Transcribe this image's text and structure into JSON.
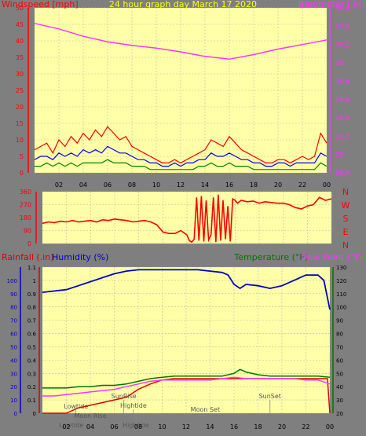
{
  "colors": {
    "background": "#7f7f7f",
    "plot_bg": "#ffffa8",
    "grid": "#b9b9b9",
    "wind_red": "#ff0000",
    "wind_blue": "#0000ff",
    "wind_green": "#008000",
    "barometer": "#ff33ff",
    "direction": "#ff0000",
    "humidity": "#0000cc",
    "rainfall": "#dd0000",
    "temperature": "#007700",
    "dewpoint": "#ff33ff",
    "yellow_text": "#ffff00"
  },
  "chart_data": [
    {
      "type": "line",
      "title": "24 hour graph day   March 17 2020",
      "series": [
        {
          "name": "Windspeed [mph]",
          "axis": "left",
          "x": [
            0,
            0.5,
            1,
            1.5,
            2,
            2.5,
            3,
            3.5,
            4,
            4.5,
            5,
            5.5,
            6,
            6.5,
            7,
            7.5,
            8,
            8.5,
            9,
            9.5,
            10,
            10.5,
            11,
            11.5,
            12,
            12.5,
            13,
            13.5,
            14,
            14.5,
            15,
            15.5,
            16,
            16.5,
            17,
            17.5,
            18,
            18.5,
            19,
            19.5,
            20,
            20.5,
            21,
            21.5,
            22,
            22.5,
            23,
            23.5,
            24
          ],
          "gust": [
            7,
            8,
            9,
            6,
            10,
            8,
            11,
            9,
            12,
            10,
            13,
            11,
            14,
            12,
            10,
            11,
            8,
            7,
            6,
            5,
            4,
            3,
            3,
            4,
            3,
            4,
            5,
            6,
            7,
            10,
            9,
            8,
            11,
            9,
            7,
            6,
            5,
            4,
            3,
            3,
            4,
            4,
            3,
            4,
            5,
            4,
            5,
            12,
            9
          ],
          "average": [
            4,
            5,
            5,
            4,
            6,
            5,
            6,
            5,
            7,
            6,
            7,
            6,
            8,
            7,
            6,
            6,
            5,
            4,
            4,
            3,
            3,
            2,
            2,
            3,
            2,
            3,
            3,
            4,
            4,
            6,
            5,
            5,
            6,
            5,
            4,
            4,
            3,
            3,
            2,
            2,
            3,
            3,
            2,
            3,
            3,
            3,
            3,
            6,
            5
          ],
          "lull": [
            2,
            2,
            3,
            2,
            3,
            2,
            3,
            2,
            3,
            3,
            3,
            3,
            4,
            3,
            3,
            3,
            2,
            2,
            2,
            1,
            1,
            1,
            1,
            1,
            1,
            1,
            1,
            2,
            2,
            3,
            2,
            2,
            3,
            2,
            2,
            2,
            1,
            1,
            1,
            1,
            1,
            1,
            1,
            1,
            1,
            1,
            1,
            3,
            2
          ]
        },
        {
          "name": "Barometer [.in]",
          "axis": "right",
          "x": [
            0,
            2,
            4,
            6,
            8,
            10,
            12,
            14,
            16,
            18,
            20,
            22,
            24
          ],
          "values": [
            30.43,
            30.37,
            30.29,
            30.23,
            30.19,
            30.16,
            30.12,
            30.07,
            30.04,
            30.09,
            30.15,
            30.2,
            30.25
          ]
        }
      ],
      "x_ticks": [
        "02",
        "04",
        "06",
        "08",
        "10",
        "12",
        "14",
        "16",
        "18",
        "20",
        "22",
        "00"
      ],
      "y_left": {
        "label": "Windspeed [mph]",
        "min": 0,
        "max": 50,
        "ticks": [
          0,
          5,
          10,
          15,
          20,
          25,
          30,
          35,
          40,
          45,
          50
        ]
      },
      "y_right": {
        "label": "Barometer [.in]",
        "min": 28.8,
        "max": 30.6,
        "ticks": [
          "28.8",
          "29",
          "29.2",
          "29.4",
          "29.6",
          "29.8",
          "30",
          "30.2",
          "30.4",
          "30.6"
        ]
      },
      "grid": true
    },
    {
      "type": "line",
      "series": [
        {
          "name": "Wind direction",
          "x": [
            0,
            0.5,
            1,
            1.5,
            2,
            2.5,
            3,
            3.5,
            4,
            4.5,
            5,
            5.5,
            6,
            6.5,
            7,
            7.5,
            8,
            8.5,
            9,
            9.5,
            10,
            10.5,
            11,
            11.5,
            12,
            12.2,
            12.4,
            12.6,
            12.8,
            13,
            13.2,
            13.4,
            13.6,
            13.8,
            14,
            14.2,
            14.4,
            14.6,
            14.8,
            15,
            15.2,
            15.4,
            15.6,
            15.8,
            16,
            16.2,
            16.5,
            17,
            17.5,
            18,
            18.5,
            19,
            19.5,
            20,
            20.5,
            21,
            21.5,
            22,
            22.5,
            23,
            23.5,
            24
          ],
          "values": [
            140,
            150,
            145,
            155,
            150,
            160,
            150,
            155,
            160,
            150,
            165,
            160,
            170,
            165,
            160,
            150,
            155,
            160,
            150,
            130,
            80,
            70,
            70,
            90,
            60,
            20,
            10,
            30,
            320,
            20,
            330,
            15,
            300,
            25,
            60,
            320,
            10,
            340,
            20,
            300,
            30,
            260,
            15,
            310,
            300,
            280,
            300,
            290,
            295,
            280,
            290,
            285,
            280,
            280,
            270,
            250,
            240,
            260,
            270,
            320,
            300,
            310
          ]
        }
      ],
      "y": {
        "min": 0,
        "max": 360,
        "ticks": [
          0,
          90,
          180,
          270,
          360
        ]
      },
      "compass": [
        "N",
        "W",
        "S",
        "E",
        "N"
      ],
      "grid": true
    },
    {
      "type": "line",
      "series": [
        {
          "name": "Humidity (%)",
          "axis": "left",
          "x": [
            0,
            1,
            2,
            3,
            4,
            5,
            6,
            7,
            8,
            9,
            10,
            11,
            12,
            13,
            14,
            15,
            15.5,
            16,
            16.5,
            17,
            18,
            19,
            20,
            21,
            22,
            23,
            23.5,
            24
          ],
          "values": [
            91,
            92,
            93,
            96,
            99,
            102,
            105,
            107,
            108,
            108,
            108,
            108,
            108,
            108,
            107,
            106,
            104,
            97,
            94,
            97,
            96,
            94,
            96,
            100,
            104,
            104,
            100,
            78
          ]
        },
        {
          "name": "Rainfall (.in)",
          "axis": "left",
          "x": [
            0,
            1,
            2,
            3,
            4,
            5,
            6,
            7,
            8,
            9,
            10,
            11,
            12,
            13,
            14,
            15,
            16,
            17,
            18,
            19,
            20,
            21,
            22,
            23,
            23.8,
            24
          ],
          "values": [
            0,
            0,
            0,
            0.04,
            0.06,
            0.08,
            0.1,
            0.12,
            0.18,
            0.22,
            0.25,
            0.26,
            0.26,
            0.26,
            0.26,
            0.26,
            0.26,
            0.26,
            0.26,
            0.26,
            0.26,
            0.26,
            0.26,
            0.26,
            0.26,
            0
          ]
        },
        {
          "name": "Temperature (°F)",
          "axis": "right",
          "x": [
            0,
            1,
            2,
            3,
            4,
            5,
            6,
            7,
            8,
            9,
            10,
            11,
            12,
            13,
            14,
            15,
            16,
            16.5,
            17,
            18,
            19,
            20,
            21,
            22,
            23,
            24
          ],
          "values": [
            39,
            39,
            39,
            40,
            40,
            41,
            41,
            42,
            44,
            46,
            47,
            48,
            48,
            48,
            48,
            48,
            50,
            53,
            51,
            49,
            48,
            48,
            48,
            48,
            48,
            47
          ]
        },
        {
          "name": "Dew Point (°F)",
          "axis": "right",
          "x": [
            0,
            1,
            2,
            3,
            4,
            5,
            6,
            7,
            8,
            9,
            10,
            11,
            12,
            13,
            14,
            15,
            16,
            17,
            18,
            19,
            20,
            21,
            22,
            23,
            24
          ],
          "values": [
            33,
            33,
            34,
            35,
            36,
            37,
            38,
            40,
            42,
            44,
            45,
            45,
            45,
            45,
            45,
            46,
            47,
            46,
            46,
            46,
            46,
            46,
            45,
            45,
            42
          ]
        }
      ],
      "x_ticks": [
        "02",
        "04",
        "06",
        "08",
        "10",
        "12",
        "14",
        "16",
        "18",
        "20",
        "22",
        "00"
      ],
      "humidity_ticks": [
        0,
        10,
        20,
        30,
        40,
        50,
        60,
        70,
        80,
        90,
        100
      ],
      "rain_ticks": [
        "0",
        "0.1",
        "0.2",
        "0.3",
        "0.4",
        "0.5",
        "0.6",
        "0.7",
        "0.8",
        "0.9",
        "1",
        "1.1"
      ],
      "temp_ticks": [
        20,
        30,
        40,
        50,
        60,
        70,
        80,
        90,
        100,
        110,
        120,
        130
      ],
      "grid": true,
      "annotations": [
        {
          "text": "Lowtide",
          "x": 2.8
        },
        {
          "text": "Moon Rise",
          "x": 4.0
        },
        {
          "text": "SunRise",
          "x": 6.8
        },
        {
          "text": "Hightide",
          "x": 7.6
        },
        {
          "text": "Moon Set",
          "x": 13.6
        },
        {
          "text": "SunSet",
          "x": 19.0
        },
        {
          "text": "Lowtide",
          "x": 2.4
        },
        {
          "text": "Hightide",
          "x": 7.8
        }
      ]
    }
  ]
}
